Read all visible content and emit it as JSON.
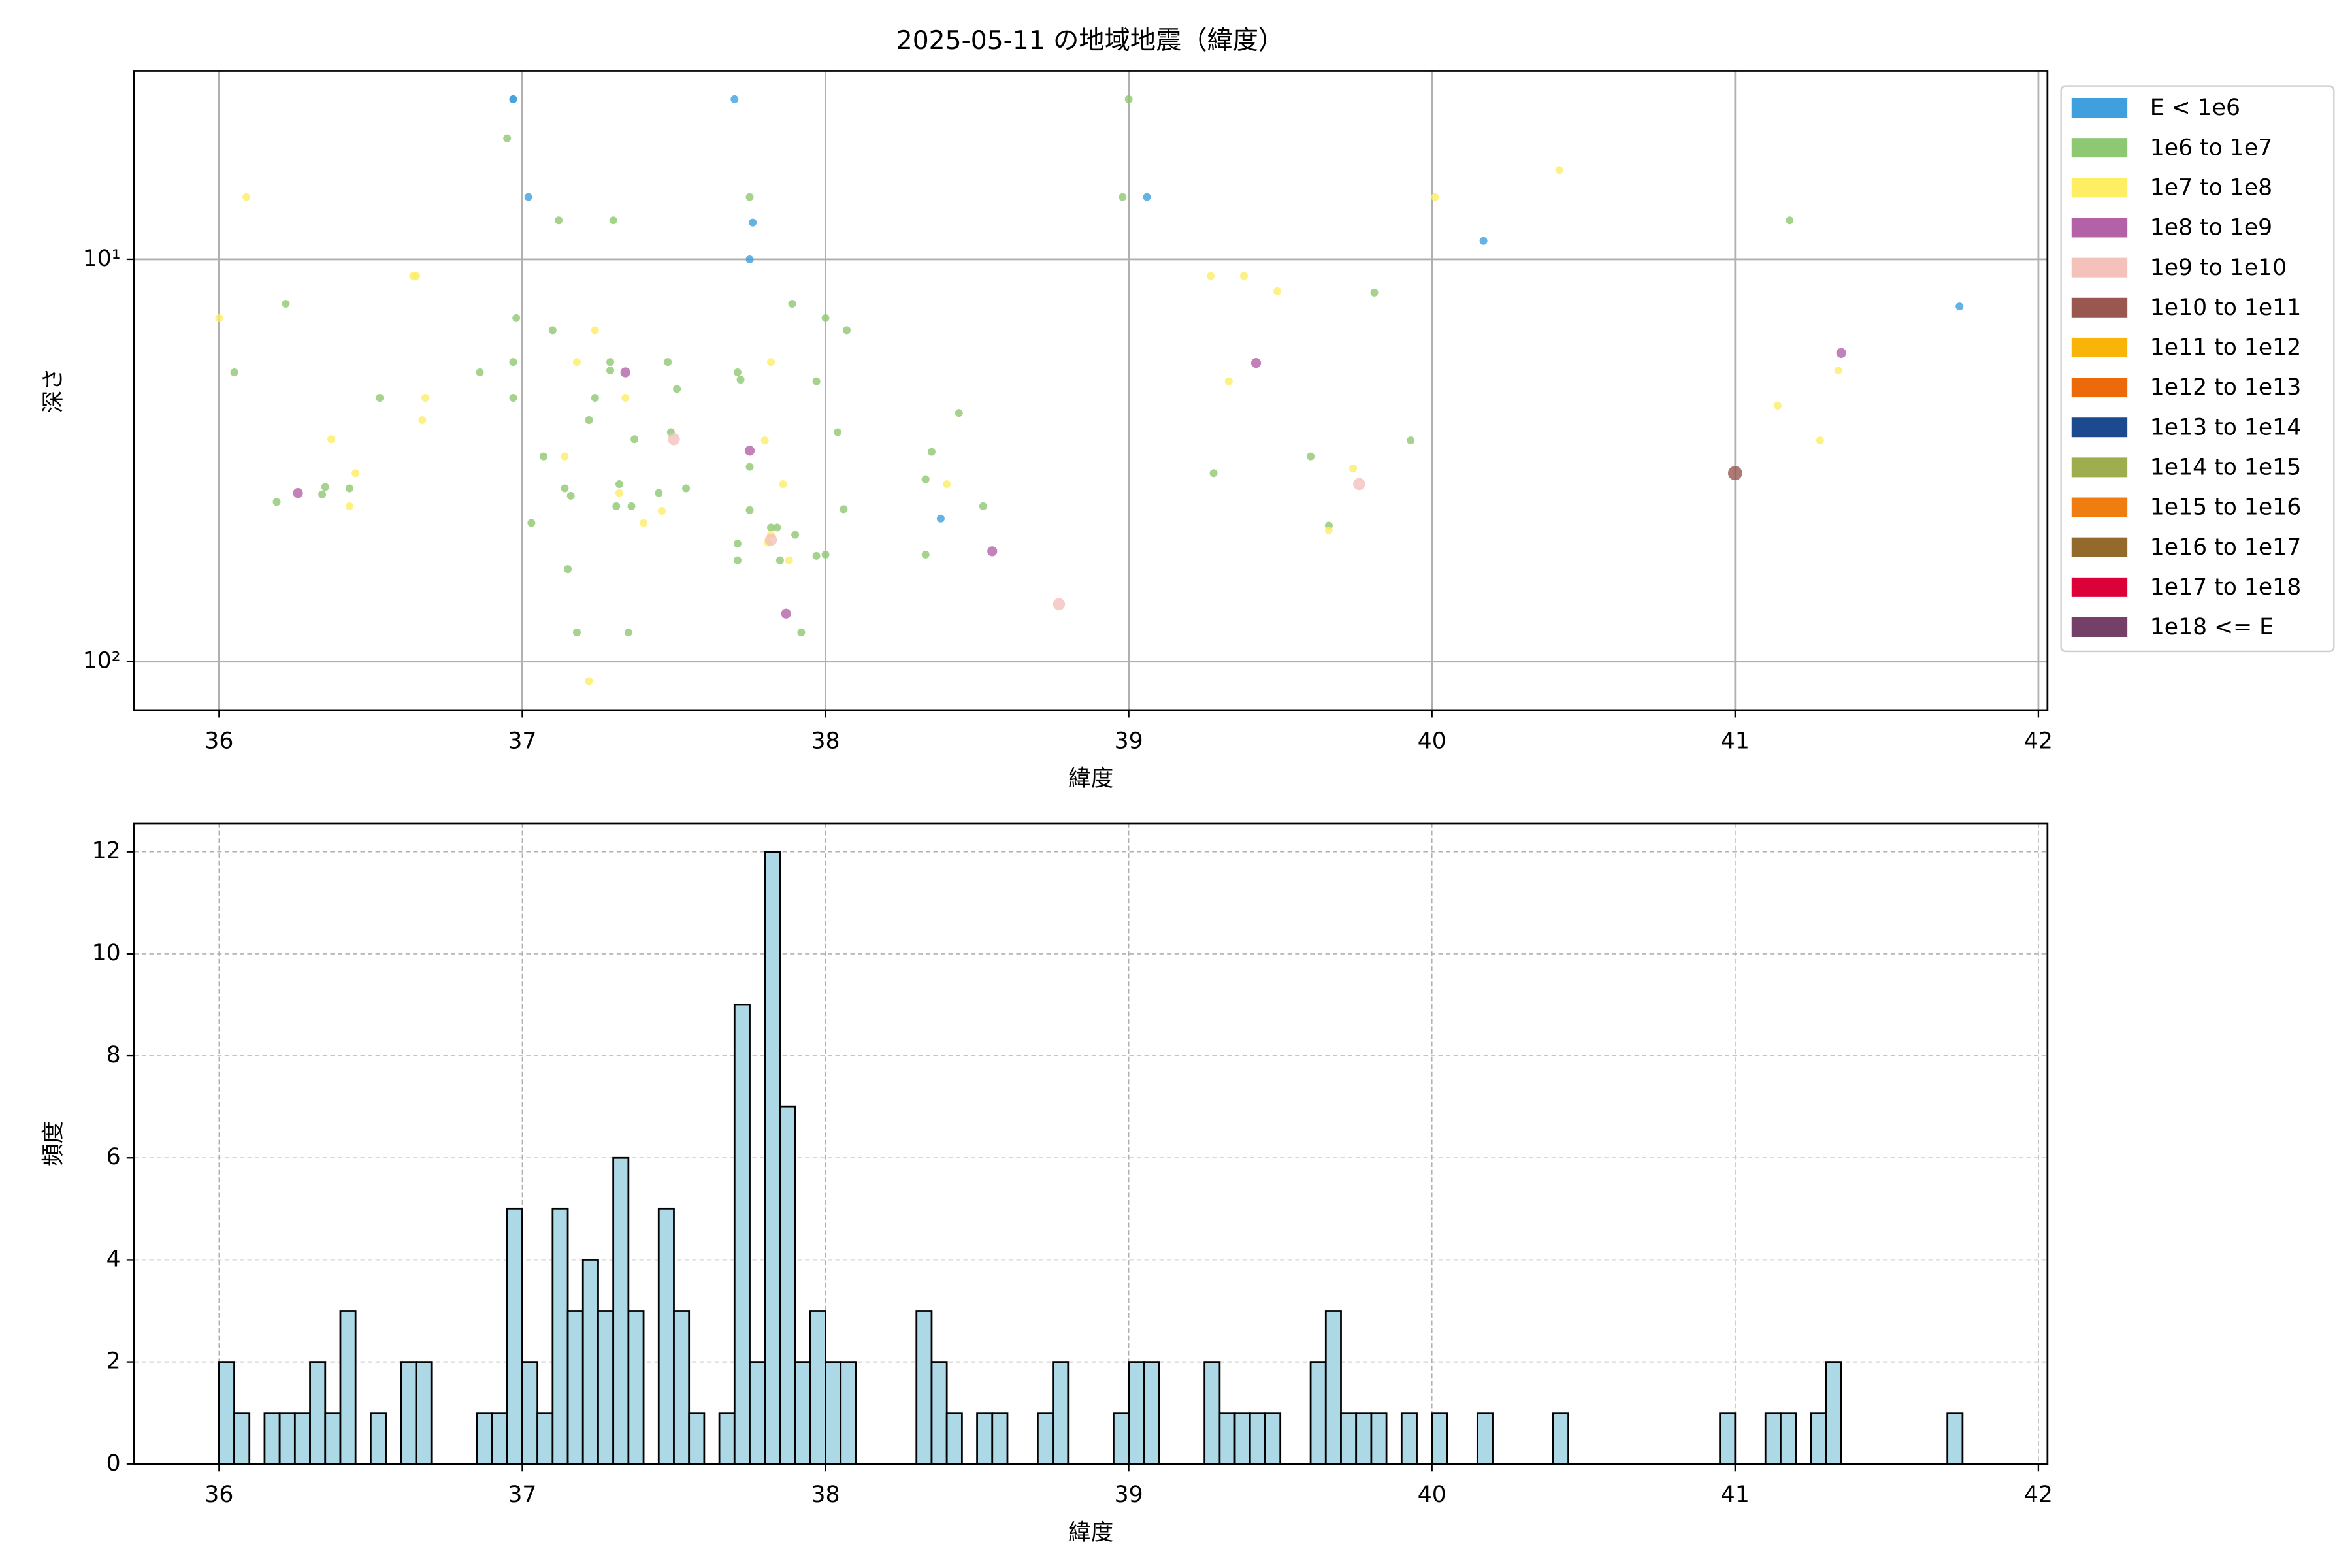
{
  "chart_data": [
    {
      "type": "scatter",
      "title": "2025-05-11 の地域地震（緯度）",
      "x_label": "緯度",
      "y_label": "深さ",
      "xlim": [
        35.72,
        42.03
      ],
      "xticks": [
        36,
        37,
        38,
        39,
        40,
        41,
        42
      ],
      "ylim": [
        3.4,
        132
      ],
      "y_log": true,
      "y_inverted": true,
      "yticks": [
        {
          "value": 10,
          "label": "10¹"
        },
        {
          "value": 100,
          "label": "10²"
        }
      ],
      "grid": true,
      "legend": "right",
      "series": [
        {
          "name": "E < 1e6",
          "color": "#3fa0dd",
          "x": [
            36.97,
            36.97,
            37.02,
            37.7,
            37.76,
            37.75,
            39.06,
            40.17,
            41.74,
            38.38
          ],
          "values": [
            4.0,
            4.0,
            7.0,
            4.0,
            8.1,
            10,
            7.0,
            9.0,
            13.1,
            44.1
          ]
        },
        {
          "name": "1e6 to 1e7",
          "color": "#8fc872",
          "x": [
            39.0,
            36.95,
            37.75,
            38.98,
            37.12,
            37.3,
            41.18,
            36.22,
            39.81,
            36.98,
            38.0,
            37.1,
            38.07,
            37.89,
            37.29,
            37.29,
            36.97,
            37.48,
            36.05,
            36.86,
            37.71,
            37.72,
            37.51,
            37.97,
            36.53,
            36.97,
            37.24,
            38.44,
            37.22,
            38.04,
            37.49,
            37.37,
            39.93,
            38.35,
            37.07,
            39.6,
            37.75,
            39.28,
            38.33,
            37.32,
            36.35,
            37.14,
            36.43,
            37.54,
            36.34,
            37.16,
            37.45,
            36.19,
            37.31,
            37.36,
            38.52,
            38.06,
            37.75,
            37.03,
            37.82,
            37.84,
            39.66,
            37.9,
            37.71,
            37.97,
            38.0,
            38.33,
            37.85,
            37.71,
            37.15,
            37.18,
            37.35,
            37.92
          ],
          "values": [
            4.0,
            5.0,
            7.0,
            7.0,
            8.0,
            8.0,
            8.0,
            12.9,
            12.1,
            14.0,
            14.0,
            15.0,
            15.0,
            12.9,
            18.0,
            18.9,
            18.0,
            18.0,
            19.1,
            19.1,
            19.1,
            19.9,
            21.0,
            20.1,
            22.1,
            22.1,
            22.1,
            24.1,
            25.1,
            26.9,
            26.9,
            28.0,
            28.2,
            30.1,
            30.9,
            30.9,
            32.8,
            34.0,
            35.2,
            36.2,
            36.8,
            37.1,
            37.1,
            37.1,
            38.4,
            38.7,
            38.1,
            40.1,
            41.1,
            41.1,
            41.1,
            41.8,
            42.0,
            45.2,
            46.4,
            46.4,
            45.9,
            48.4,
            50.9,
            54.6,
            54.2,
            54.2,
            56.0,
            56.0,
            58.9,
            84.6,
            84.6,
            84.6
          ]
        },
        {
          "name": "1e7 to 1e8",
          "color": "#fdee64",
          "x": [
            36.09,
            36.64,
            36.65,
            40.42,
            40.01,
            39.27,
            39.38,
            39.49,
            36.0,
            37.24,
            37.18,
            37.82,
            39.33,
            41.34,
            36.68,
            37.34,
            41.14,
            36.67,
            37.8,
            41.28,
            36.37,
            37.14,
            36.45,
            39.74,
            37.86,
            38.4,
            37.32,
            36.43,
            37.46,
            37.4,
            37.82,
            37.81,
            37.88,
            39.66,
            37.22
          ],
          "values": [
            7.0,
            11.0,
            11.0,
            6.0,
            7.0,
            11.0,
            11.0,
            12.0,
            14.0,
            15.0,
            18.0,
            18.0,
            20.1,
            18.9,
            22.1,
            22.1,
            23.1,
            25.1,
            28.2,
            28.2,
            28.0,
            30.9,
            34.0,
            33.1,
            36.2,
            36.2,
            38.1,
            41.1,
            42.2,
            45.2,
            48.4,
            50.6,
            56.0,
            47.2,
            111.8
          ]
        },
        {
          "name": "1e8 to 1e9",
          "color": "#b462a8",
          "x": [
            37.34,
            39.42,
            41.35,
            37.75,
            36.26,
            38.55,
            37.87
          ],
          "values": [
            19.1,
            18.1,
            17.1,
            29.9,
            38.1,
            53.2,
            76.0
          ]
        },
        {
          "name": "1e9 to 1e10",
          "color": "#f4c1bb",
          "x": [
            37.5,
            39.76,
            38.77,
            37.82
          ],
          "values": [
            28.0,
            36.2,
            72.0,
            49.8
          ]
        },
        {
          "name": "1e10 to 1e11",
          "color": "#995750",
          "x": [
            41.0
          ],
          "values": [
            34.0
          ]
        },
        {
          "name": "1e11 to 1e12",
          "color": "#f9b40a",
          "x": [],
          "values": []
        },
        {
          "name": "1e12 to 1e13",
          "color": "#ed6a0b",
          "x": [],
          "values": []
        },
        {
          "name": "1e13 to 1e14",
          "color": "#1c4a8e",
          "x": [],
          "values": []
        },
        {
          "name": "1e14 to 1e15",
          "color": "#9ead4e",
          "x": [],
          "values": []
        },
        {
          "name": "1e15 to 1e16",
          "color": "#ef7d10",
          "x": [],
          "values": []
        },
        {
          "name": "1e16 to 1e17",
          "color": "#93692c",
          "x": [],
          "values": []
        },
        {
          "name": "1e17 to 1e18",
          "color": "#dc0139",
          "x": [],
          "values": []
        },
        {
          "name": "1e18 <= E",
          "color": "#744068",
          "x": [],
          "values": []
        }
      ]
    },
    {
      "type": "histogram",
      "x_label": "緯度",
      "y_label": "頻度",
      "color": "#add8e6",
      "edge_color": "#000000",
      "xlim": [
        35.72,
        42.03
      ],
      "xticks": [
        36,
        37,
        38,
        39,
        40,
        41,
        42
      ],
      "ylim": [
        0,
        12.56
      ],
      "yticks": [
        0,
        2,
        4,
        6,
        8,
        10,
        12
      ],
      "grid": true,
      "grid_style": "dashed",
      "bins": [
        36,
        36.05,
        36.1,
        36.15,
        36.2,
        36.25,
        36.3,
        36.35,
        36.4,
        36.45,
        36.5,
        36.55,
        36.6,
        36.65,
        36.7,
        36.75,
        36.8,
        36.85,
        36.9,
        36.95,
        37,
        37.05,
        37.1,
        37.15,
        37.2,
        37.25,
        37.3,
        37.35,
        37.4,
        37.45,
        37.5,
        37.55,
        37.6,
        37.65,
        37.7,
        37.75,
        37.8,
        37.85,
        37.9,
        37.95,
        38,
        38.05,
        38.1,
        38.15,
        38.2,
        38.25,
        38.3,
        38.35,
        38.4,
        38.45,
        38.5,
        38.55,
        38.6,
        38.65,
        38.7,
        38.75,
        38.8,
        38.85,
        38.9,
        38.95,
        39,
        39.05,
        39.1,
        39.15,
        39.2,
        39.25,
        39.3,
        39.35,
        39.4,
        39.45,
        39.5,
        39.55,
        39.6,
        39.65,
        39.7,
        39.75,
        39.8,
        39.85,
        39.9,
        39.95,
        40,
        40.05,
        40.1,
        40.15,
        40.2,
        40.25,
        40.3,
        40.35,
        40.4,
        40.45,
        40.5,
        40.55,
        40.6,
        40.65,
        40.7,
        40.75,
        40.8,
        40.85,
        40.9,
        40.95,
        41,
        41.05,
        41.1,
        41.15,
        41.2,
        41.25,
        41.3,
        41.35,
        41.4,
        41.45,
        41.5,
        41.55,
        41.6,
        41.65,
        41.7,
        41.75
      ],
      "values": [
        2,
        1,
        0,
        1,
        1,
        1,
        2,
        1,
        3,
        0,
        1,
        0,
        2,
        2,
        0,
        0,
        0,
        1,
        1,
        5,
        2,
        1,
        5,
        3,
        4,
        3,
        6,
        3,
        0,
        5,
        3,
        1,
        0,
        1,
        9,
        2,
        12,
        7,
        2,
        3,
        2,
        2,
        0,
        0,
        0,
        0,
        3,
        2,
        1,
        0,
        1,
        1,
        0,
        0,
        1,
        2,
        0,
        0,
        0,
        1,
        2,
        2,
        0,
        0,
        0,
        2,
        1,
        1,
        1,
        1,
        0,
        0,
        2,
        3,
        1,
        1,
        1,
        0,
        1,
        0,
        1,
        0,
        0,
        1,
        0,
        0,
        0,
        0,
        1,
        0,
        0,
        0,
        0,
        0,
        0,
        0,
        0,
        0,
        0,
        1,
        0,
        0,
        1,
        1,
        0,
        1,
        2,
        0,
        0,
        0,
        0,
        0,
        0,
        0,
        1
      ]
    }
  ]
}
